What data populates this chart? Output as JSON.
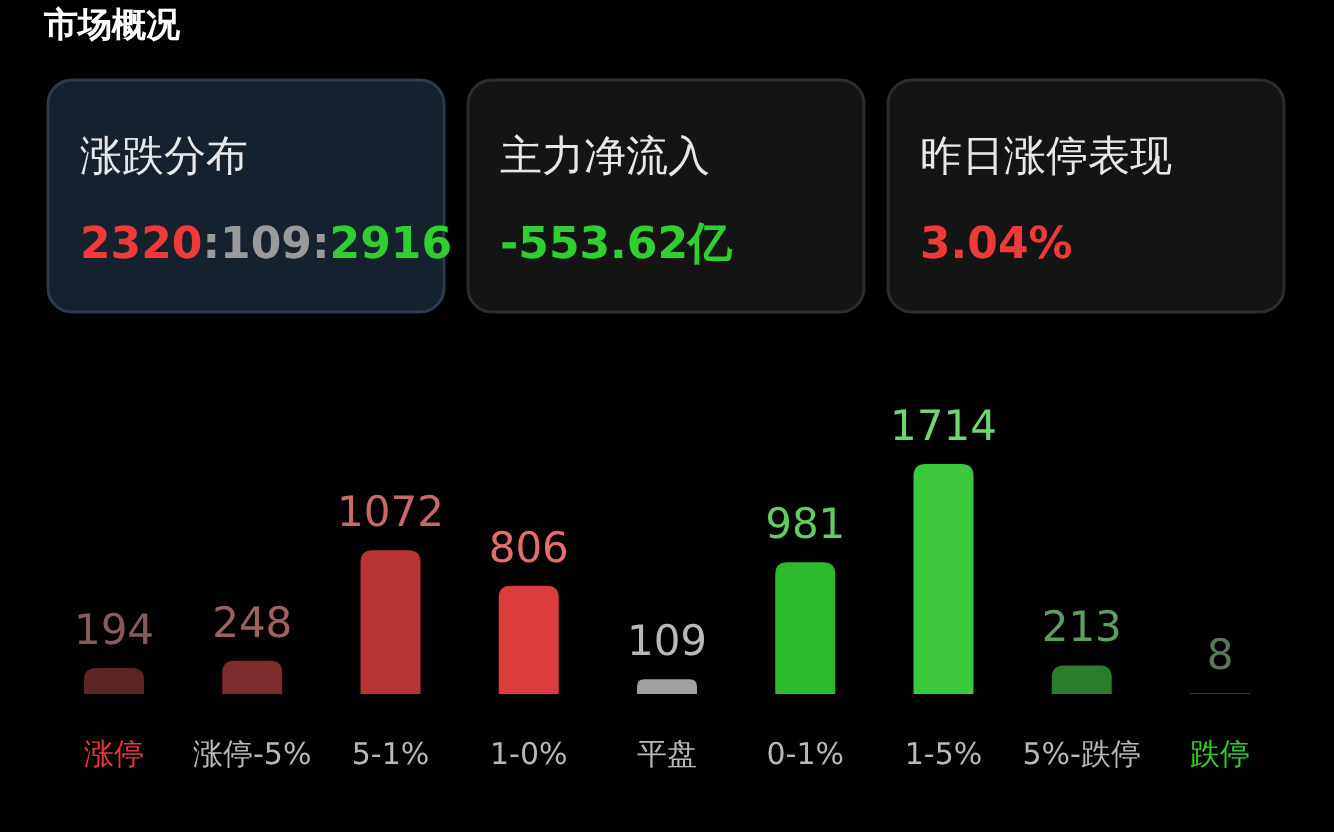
{
  "chart_data": [
    {
      "type": "other",
      "title": "市场概况",
      "annotations": [
        "涨跌分布",
        "2320:109:2916",
        "主力净流入",
        "-553.62亿",
        "昨日涨停表现",
        "3.04%"
      ]
    },
    {
      "type": "bar",
      "categories": [
        "涨停",
        "涨停-5%",
        "5-1%",
        "1-0%",
        "平盘",
        "0-1%",
        "1-5%",
        "5%-跌停",
        "跌停"
      ],
      "values": [
        194,
        248,
        1072,
        806,
        109,
        981,
        1714,
        213,
        8
      ],
      "colors": [
        "#5c2626",
        "#7e2b2b",
        "#b83434",
        "#dc3c3c",
        "#a0a0a0",
        "#2cbb2c",
        "#3cc83c",
        "#2a7d2a",
        "#1e4d1e"
      ],
      "data_labels": true
    }
  ]
}
